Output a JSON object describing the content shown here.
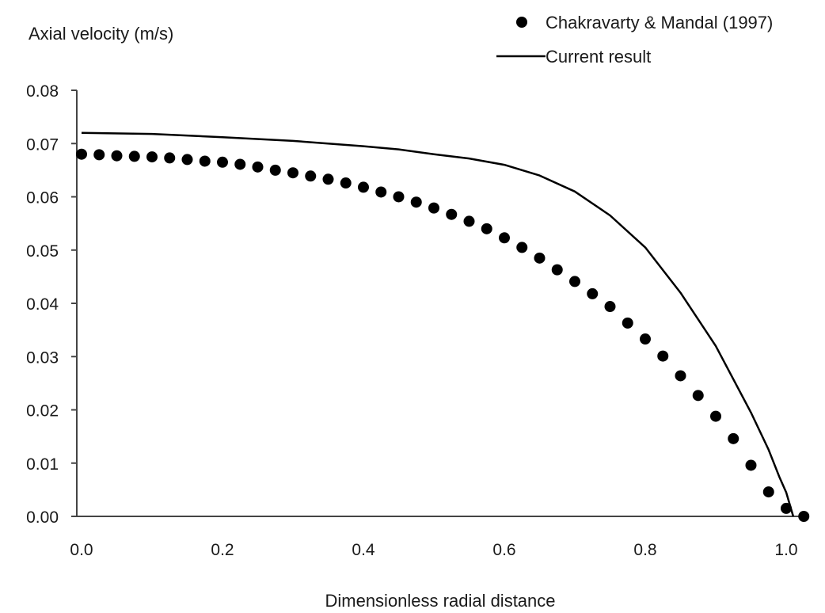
{
  "chart_data": {
    "type": "scatter",
    "title": "",
    "ylabel": "Axial velocity (m/s)",
    "xlabel": "Dimensionless radial distance",
    "xlim": [
      0.0,
      1.02
    ],
    "ylim": [
      0.0,
      0.08
    ],
    "x_ticks": [
      "0.0",
      "0.2",
      "0.4",
      "0.6",
      "0.8",
      "1.0"
    ],
    "y_ticks": [
      "0.00",
      "0.01",
      "0.02",
      "0.03",
      "0.04",
      "0.05",
      "0.06",
      "0.07",
      "0.08"
    ],
    "grid": false,
    "legend_position": "top-right",
    "series": [
      {
        "name": "Chakravarty & Mandal (1997)",
        "style": "markers",
        "color": "#000000",
        "x": [
          0.0,
          0.025,
          0.05,
          0.075,
          0.1,
          0.125,
          0.15,
          0.175,
          0.2,
          0.225,
          0.25,
          0.275,
          0.3,
          0.325,
          0.35,
          0.375,
          0.4,
          0.425,
          0.45,
          0.475,
          0.5,
          0.525,
          0.55,
          0.575,
          0.6,
          0.625,
          0.65,
          0.675,
          0.7,
          0.725,
          0.75,
          0.775,
          0.8,
          0.825,
          0.85,
          0.875,
          0.9,
          0.925,
          0.95,
          0.975,
          1.0,
          1.025
        ],
        "y": [
          0.068,
          0.0679,
          0.0677,
          0.0676,
          0.0675,
          0.0673,
          0.067,
          0.0667,
          0.0665,
          0.0661,
          0.0656,
          0.065,
          0.0645,
          0.0639,
          0.0633,
          0.0626,
          0.0618,
          0.0609,
          0.06,
          0.059,
          0.0579,
          0.0567,
          0.0554,
          0.054,
          0.0523,
          0.0505,
          0.0485,
          0.0463,
          0.0441,
          0.0418,
          0.0394,
          0.0363,
          0.0333,
          0.0301,
          0.0264,
          0.0227,
          0.0188,
          0.0146,
          0.0096,
          0.0046,
          0.0015,
          0.0
        ]
      },
      {
        "name": "Current result",
        "style": "line",
        "color": "#000000",
        "x": [
          0.0,
          0.1,
          0.2,
          0.3,
          0.4,
          0.45,
          0.5,
          0.55,
          0.6,
          0.65,
          0.7,
          0.75,
          0.8,
          0.85,
          0.9,
          0.95,
          0.975,
          0.99,
          1.0,
          1.01
        ],
        "y": [
          0.072,
          0.0718,
          0.0712,
          0.0705,
          0.0695,
          0.0689,
          0.068,
          0.0672,
          0.066,
          0.064,
          0.061,
          0.0565,
          0.0505,
          0.042,
          0.032,
          0.0195,
          0.0125,
          0.0075,
          0.0045,
          0.0
        ]
      }
    ]
  }
}
